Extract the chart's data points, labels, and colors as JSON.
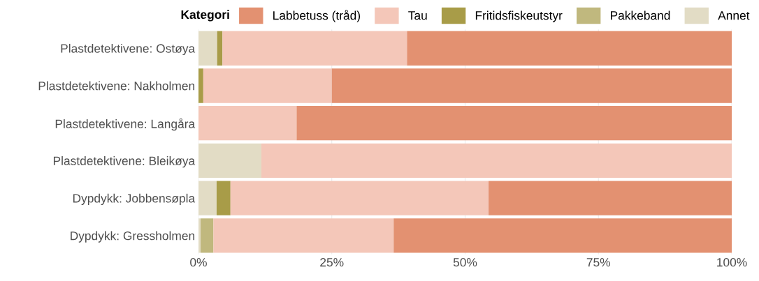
{
  "chart_data": {
    "type": "bar",
    "orientation": "horizontal",
    "stacked": true,
    "legend_title": "Kategori",
    "legend": "top",
    "categories": [
      "Plastdetektivene: Ostøya",
      "Plastdetektivene: Nakholmen",
      "Plastdetektivene: Langåra",
      "Plastdetektivene: Bleikøya",
      "Dypdykk: Jobbensøpla",
      "Dypdykk: Gressholmen"
    ],
    "series": [
      {
        "name": "Annet",
        "color": "#e2dcc5",
        "values": [
          3.5,
          0,
          0,
          11.8,
          3.4,
          0.4
        ]
      },
      {
        "name": "Pakkeband",
        "color": "#c0b87e",
        "values": [
          0,
          0,
          0,
          0,
          0,
          2.4
        ]
      },
      {
        "name": "Fritidsfiskeutstyr",
        "color": "#a89c48",
        "values": [
          1.0,
          0.9,
          0,
          0,
          2.6,
          0
        ]
      },
      {
        "name": "Tau",
        "color": "#f4c7b9",
        "values": [
          34.6,
          24.1,
          18.4,
          88.2,
          48.4,
          33.8
        ]
      },
      {
        "name": "Labbetuss (tråd)",
        "color": "#e39171",
        "values": [
          60.9,
          75.0,
          81.6,
          0,
          45.6,
          63.4
        ]
      }
    ],
    "xlim": [
      0,
      100
    ],
    "xticks": [
      {
        "value": 0,
        "label": "0%"
      },
      {
        "value": 25,
        "label": "25%"
      },
      {
        "value": 50,
        "label": "50%"
      },
      {
        "value": 75,
        "label": "75%"
      },
      {
        "value": 100,
        "label": "100%"
      }
    ],
    "grid": "x"
  }
}
